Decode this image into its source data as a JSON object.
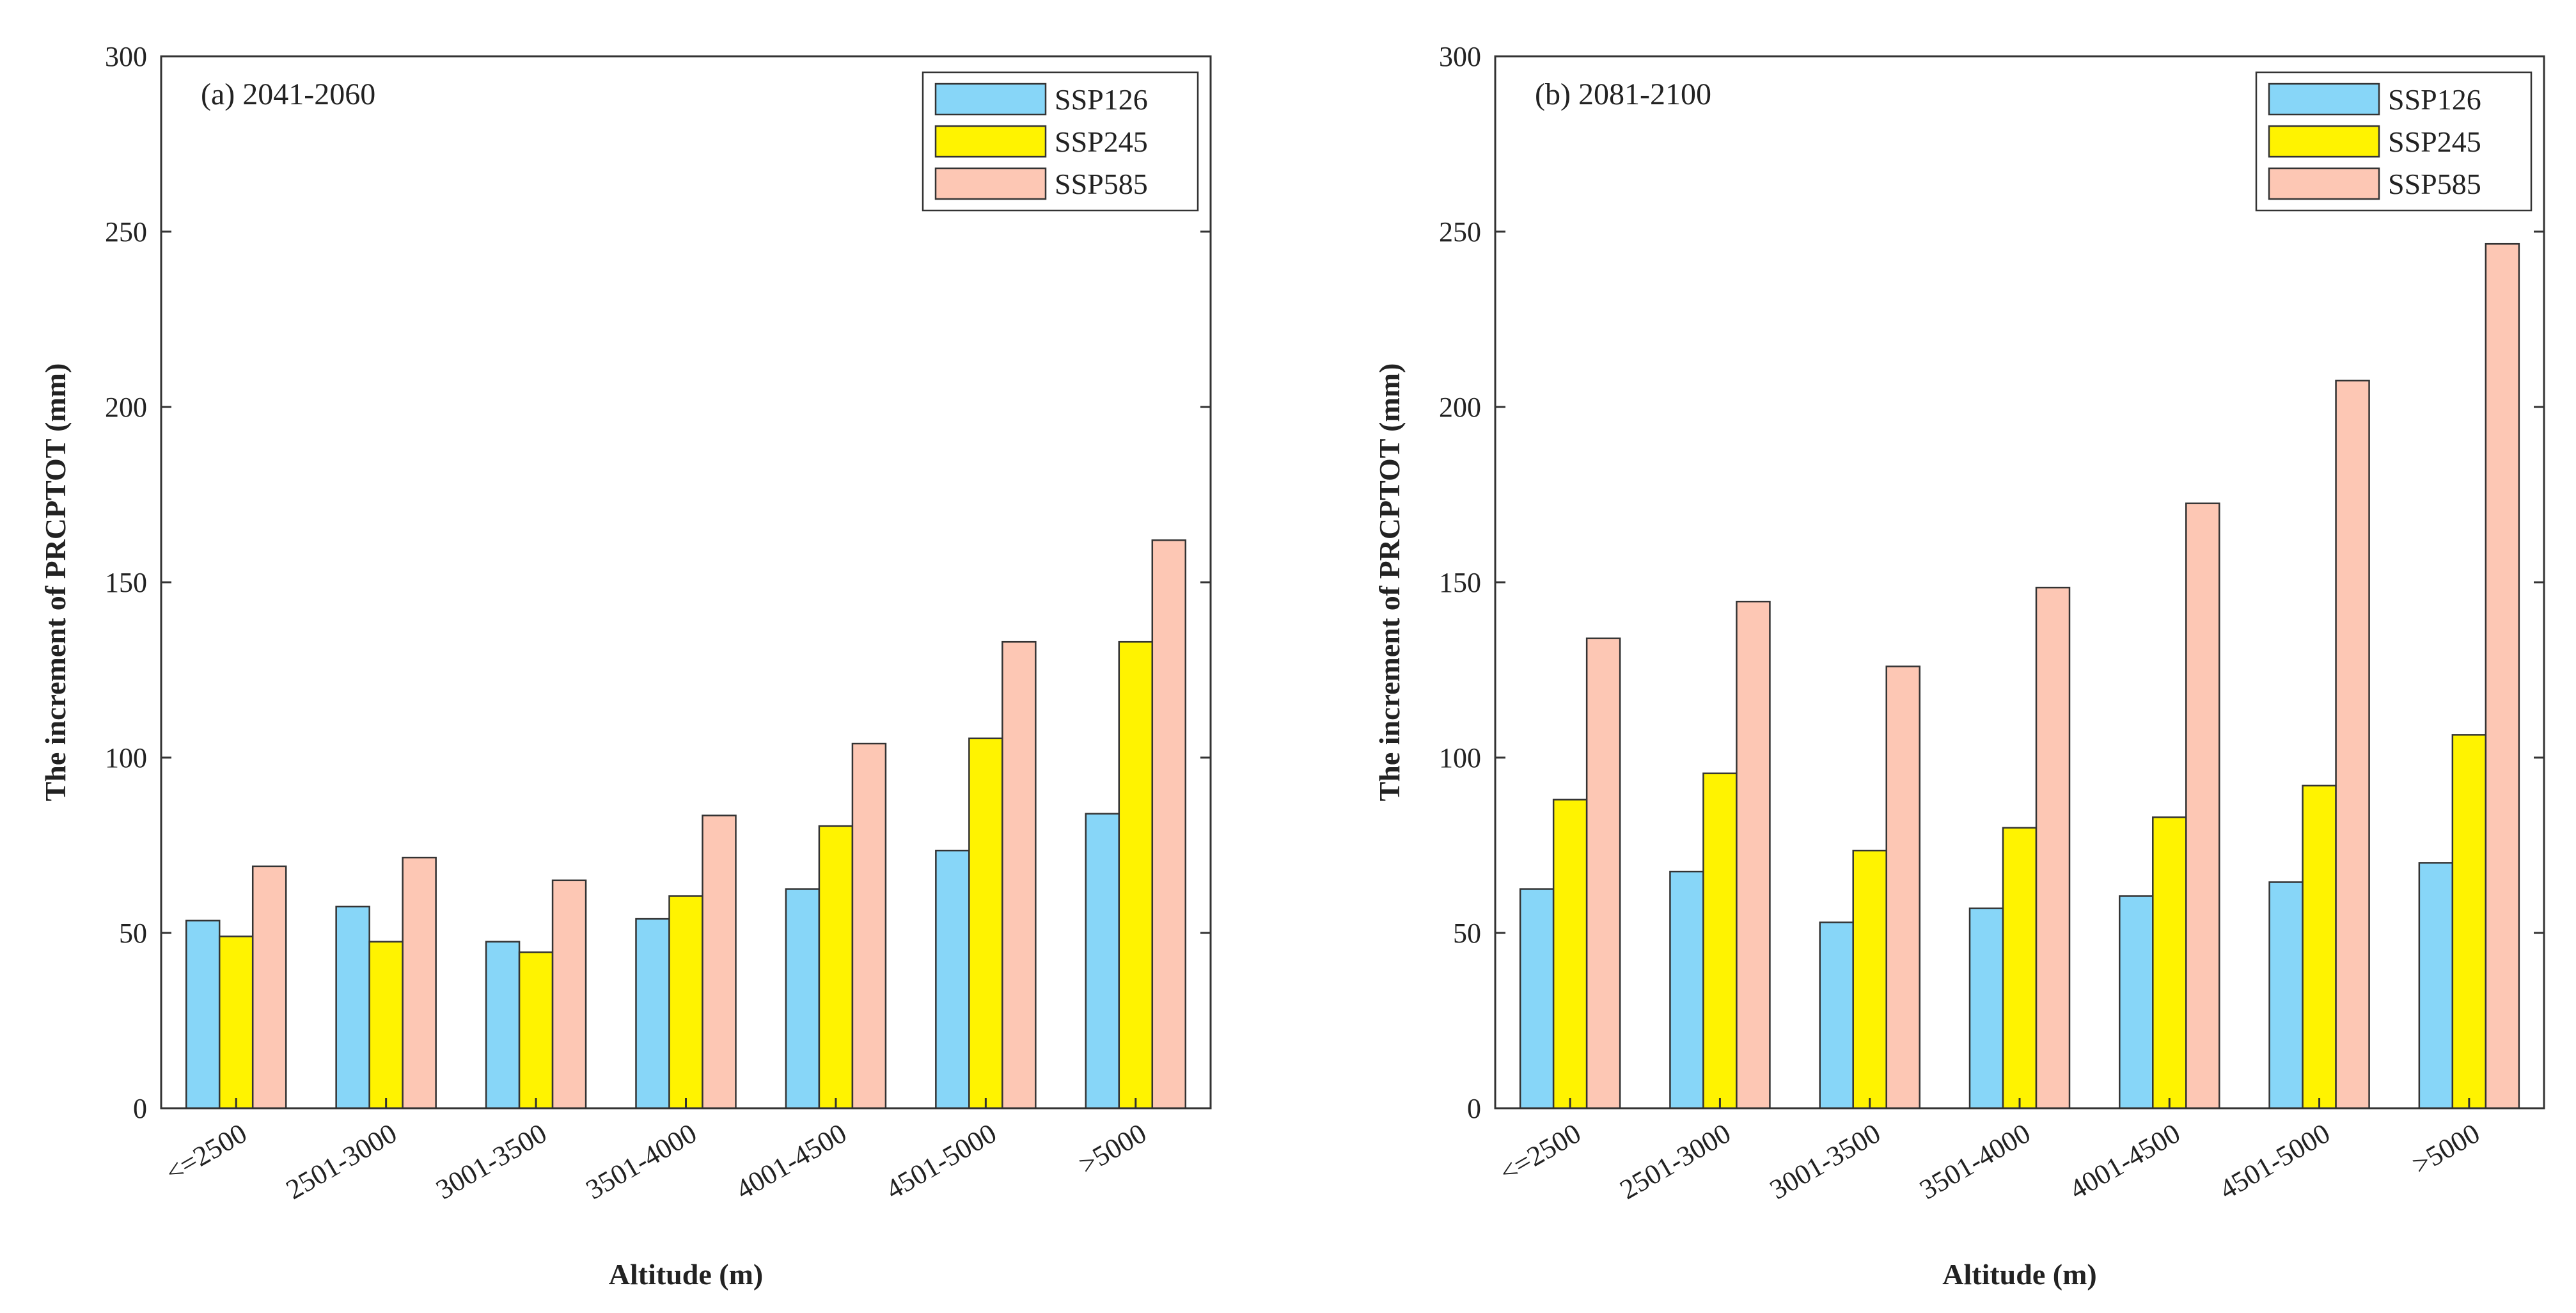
{
  "series_colors": {
    "SSP126": "#87d6f8",
    "SSP245": "#fff300",
    "SSP585": "#fdc7b4"
  },
  "chart_data": [
    {
      "type": "bar",
      "panel_label": "(a) 2041-2060",
      "xlabel": "Altitude (m)",
      "ylabel": "The increment of PRCPTOT (mm)",
      "ylim": [
        0,
        300
      ],
      "yticks": [
        0,
        50,
        100,
        150,
        200,
        250,
        300
      ],
      "categories": [
        "<=2500",
        "2501-3000",
        "3001-3500",
        "3501-4000",
        "4001-4500",
        "4501-5000",
        ">5000"
      ],
      "legend_position": "top-right",
      "series": [
        {
          "name": "SSP126",
          "values": [
            53.5,
            57.5,
            47.5,
            54,
            62.5,
            73.5,
            84
          ]
        },
        {
          "name": "SSP245",
          "values": [
            49,
            47.5,
            44.5,
            60.5,
            80.5,
            105.5,
            133
          ]
        },
        {
          "name": "SSP585",
          "values": [
            69,
            71.5,
            65,
            83.5,
            104,
            133,
            162
          ]
        }
      ]
    },
    {
      "type": "bar",
      "panel_label": "(b) 2081-2100",
      "xlabel": "Altitude (m)",
      "ylabel": "The increment of PRCPTOT (mm)",
      "ylim": [
        0,
        300
      ],
      "yticks": [
        0,
        50,
        100,
        150,
        200,
        250,
        300
      ],
      "categories": [
        "<=2500",
        "2501-3000",
        "3001-3500",
        "3501-4000",
        "4001-4500",
        "4501-5000",
        ">5000"
      ],
      "legend_position": "top-right",
      "series": [
        {
          "name": "SSP126",
          "values": [
            62.5,
            67.5,
            53,
            57,
            60.5,
            64.5,
            70
          ]
        },
        {
          "name": "SSP245",
          "values": [
            88,
            95.5,
            73.5,
            80,
            83,
            92,
            106.5
          ]
        },
        {
          "name": "SSP585",
          "values": [
            134,
            144.5,
            126,
            148.5,
            172.5,
            207.5,
            246.5
          ]
        }
      ]
    }
  ]
}
